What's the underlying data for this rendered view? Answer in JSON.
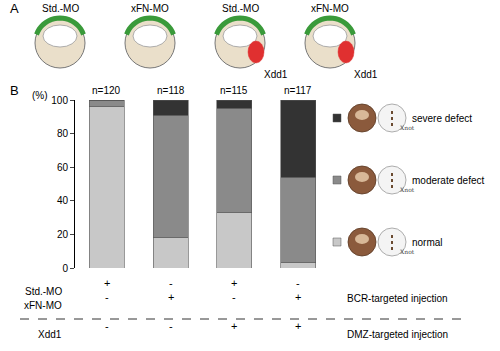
{
  "chart_data": {
    "type": "bar",
    "stacked": true,
    "panel_labels": [
      "A",
      "B"
    ],
    "y_label": "(%)",
    "categories": [
      null,
      null,
      null,
      null
    ],
    "bar_labels": [
      "n=120",
      "n=118",
      "n=115",
      "n=117"
    ],
    "series": [
      {
        "name": "normal",
        "color": "#c8c8c8",
        "values": [
          96,
          18,
          33,
          3
        ]
      },
      {
        "name": "moderate defect",
        "color": "#8a8a8a",
        "values": [
          4,
          73,
          62,
          51
        ]
      },
      {
        "name": "severe defect",
        "color": "#333333",
        "values": [
          0,
          9,
          5,
          46
        ]
      }
    ],
    "ylim": [
      0,
      100
    ],
    "yticks": [
      0,
      20,
      40,
      60,
      80,
      100
    ],
    "grid": false,
    "tick_labels": "y",
    "legend": "right",
    "legend_image_label": "Xnot",
    "conditions": [
      {
        "name": "Std.-MO",
        "values": [
          "+",
          "-",
          "+",
          "-"
        ]
      },
      {
        "name": "xFN-MO",
        "values": [
          "-",
          "+",
          "-",
          "+"
        ]
      },
      {
        "name": "Xdd1",
        "values": [
          "-",
          "-",
          "+",
          "+"
        ]
      }
    ],
    "injection_groups": [
      {
        "label": "BCR-targeted injection",
        "rows": [
          0,
          1
        ]
      },
      {
        "label": "DMZ-targeted injection",
        "rows": [
          2
        ]
      }
    ],
    "embryos": [
      {
        "morpholino": "Std.-MO"
      },
      {
        "morpholino": "xFN-MO"
      },
      {
        "morpholino": "Std.-MO",
        "dmz": "Xdd1"
      },
      {
        "morpholino": "xFN-MO",
        "dmz": "Xdd1"
      }
    ]
  }
}
